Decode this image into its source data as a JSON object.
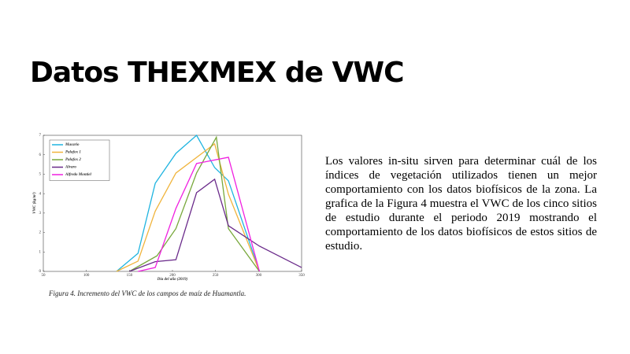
{
  "slide": {
    "title": "Datos THEXMEX de VWC",
    "paragraph": "Los valores in-situ sirven para determinar cuál de los índices de vegetación utilizados tienen un mejor comportamiento con los datos biofísicos de la zona. La grafica de la Figura 4 muestra el VWC de los cinco sitios de estudio durante el periodo 2019 mostrando el comportamiento de los datos biofísicos de estos sitios de estudio.",
    "caption": "Figura 4. Incremento del VWC de los campos de maíz de Huamantla."
  },
  "chart_data": {
    "type": "line",
    "x_label": "Día del año (2019)",
    "y_label": "VWC (kg/m³)",
    "xlim": [
      50,
      350
    ],
    "xticks": [
      50,
      100,
      150,
      200,
      250,
      300,
      350
    ],
    "ylim": [
      0,
      7
    ],
    "yticks": [
      0,
      1,
      2,
      3,
      4,
      5,
      6,
      7
    ],
    "series": [
      {
        "name": "Macario",
        "color": "#1fb4e0",
        "x": [
          135,
          160,
          180,
          204,
          228,
          249,
          265,
          301
        ],
        "values": [
          0,
          0.93,
          4.53,
          6.07,
          7.0,
          5.34,
          4.66,
          0
        ]
      },
      {
        "name": "Palafox 1",
        "color": "#f0b43c",
        "x": [
          135,
          160,
          180,
          204,
          249,
          265,
          301
        ],
        "values": [
          0,
          0.53,
          3.1,
          5.06,
          6.56,
          3.97,
          0
        ]
      },
      {
        "name": "Palafox 2",
        "color": "#78a83c",
        "x": [
          150,
          182,
          204,
          228,
          251,
          265,
          301
        ],
        "values": [
          0,
          0.8,
          2.2,
          5.06,
          6.9,
          2.2,
          0
        ]
      },
      {
        "name": "Alvaro",
        "color": "#6a2a8a",
        "x": [
          150,
          180,
          204,
          228,
          249,
          265,
          301,
          350
        ],
        "values": [
          0,
          0.5,
          0.6,
          4.05,
          4.74,
          2.35,
          1.3,
          0.2
        ]
      },
      {
        "name": "Alfredo Montiel",
        "color": "#f020e0",
        "x": [
          160,
          180,
          204,
          228,
          265,
          301
        ],
        "values": [
          0,
          0.2,
          3.24,
          5.55,
          5.87,
          0
        ]
      }
    ]
  }
}
